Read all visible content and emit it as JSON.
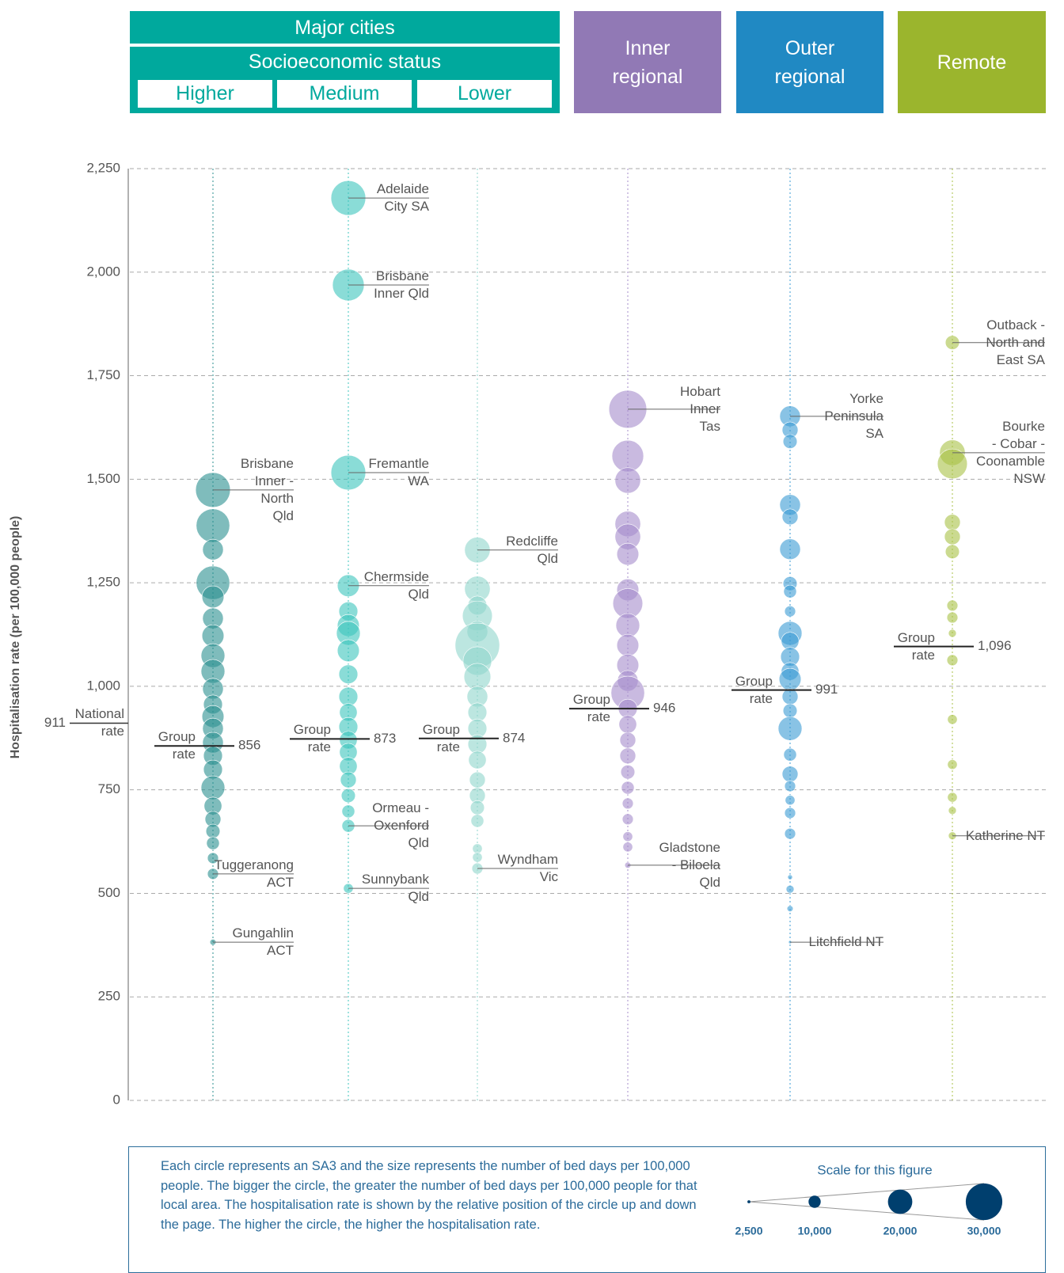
{
  "chart_data": {
    "type": "bubble",
    "header": {
      "group": "Major cities",
      "subgroup": "Socioeconomic status"
    },
    "ylabel": "Hospitalisation rate (per 100,000 people)",
    "ylim": [
      0,
      2250
    ],
    "yticks": [
      0,
      250,
      500,
      750,
      {
        "value": 1000,
        "label": "1,000"
      },
      {
        "value": 1250,
        "label": "1,250"
      },
      {
        "value": 1500,
        "label": "1,500"
      },
      {
        "value": 1750,
        "label": "1,750"
      },
      {
        "value": 2000,
        "label": "2,000"
      },
      {
        "value": 2250,
        "label": "2,250"
      }
    ],
    "grid": true,
    "group_rate_text": "Group\nrate",
    "national_rate": 911,
    "national_rate_text": "National\nrate",
    "series": [
      {
        "name": "Higher",
        "color": "#2a8f8f",
        "group_rate": 856,
        "values": [
          1474,
          1388,
          1330,
          1250,
          1216,
          1164,
          1122,
          1074,
          1036,
          994,
          956,
          927,
          898,
          864,
          832,
          799,
          755,
          711,
          679,
          650,
          621,
          585,
          547,
          382
        ],
        "sizes": [
          28500,
          27500,
          17000,
          27500,
          18000,
          17000,
          18000,
          19500,
          19500,
          17000,
          15500,
          18000,
          17000,
          17000,
          15500,
          15500,
          19500,
          14500,
          13000,
          11500,
          10500,
          9000,
          9000,
          5000
        ],
        "labels": [
          "Brisbane\nInner -\nNorth\nQld",
          null,
          null,
          null,
          null,
          null,
          null,
          null,
          null,
          null,
          null,
          null,
          null,
          null,
          null,
          null,
          null,
          null,
          null,
          null,
          null,
          null,
          "Tuggeranong\nACT",
          "Gungahlin\nACT"
        ]
      },
      {
        "name": "Medium",
        "color": "#3cc4bd",
        "group_rate": 873,
        "values": [
          2179,
          1969,
          1516,
          1243,
          1181,
          1147,
          1128,
          1086,
          1029,
          975,
          937,
          902,
          870,
          841,
          807,
          774,
          736,
          698,
          663,
          512
        ],
        "sizes": [
          28500,
          26000,
          28500,
          18000,
          15500,
          18000,
          19500,
          18000,
          15500,
          15500,
          14500,
          15500,
          14500,
          14500,
          14500,
          13000,
          11500,
          10500,
          10500,
          8000
        ],
        "labels": [
          "Adelaide\nCity SA",
          "Brisbane\nInner Qld",
          "Fremantle\nWA",
          "Chermside\nQld",
          null,
          null,
          null,
          null,
          null,
          null,
          null,
          null,
          null,
          null,
          null,
          null,
          null,
          null,
          "Ormeau -\nOxenford\nQld",
          "Sunnybank\nQld"
        ]
      },
      {
        "name": "Lower",
        "color": "#8fd6cc",
        "group_rate": 874,
        "values": [
          1329,
          1235,
          1195,
          1170,
          1132,
          1099,
          1061,
          1023,
          975,
          937,
          898,
          860,
          822,
          774,
          736,
          707,
          675,
          608,
          587,
          560
        ],
        "sizes": [
          21000,
          21000,
          15500,
          24500,
          17000,
          36500,
          23500,
          22000,
          17000,
          15500,
          15500,
          15500,
          14500,
          13000,
          13000,
          11500,
          10500,
          8000,
          8000,
          9000
        ],
        "labels": [
          "Redcliffe\nQld",
          null,
          null,
          null,
          null,
          null,
          null,
          null,
          null,
          null,
          null,
          null,
          null,
          null,
          null,
          null,
          null,
          null,
          null,
          "Wyndham\nVic"
        ]
      },
      {
        "name": "Inner regional",
        "color": "#a58ccb",
        "group_rate": 946,
        "values": [
          1669,
          1556,
          1497,
          1392,
          1361,
          1319,
          1233,
          1200,
          1147,
          1099,
          1051,
          1013,
          984,
          946,
          908,
          870,
          832,
          793,
          755,
          717,
          679,
          637,
          612,
          568
        ],
        "sizes": [
          31000,
          26000,
          21000,
          21000,
          21000,
          18000,
          18000,
          24500,
          19500,
          18000,
          18000,
          17000,
          27500,
          15500,
          14500,
          13000,
          13000,
          11500,
          10500,
          9000,
          9000,
          8000,
          8000,
          5000
        ],
        "labels": [
          "Hobart\nInner\nTas",
          null,
          null,
          null,
          null,
          null,
          null,
          null,
          null,
          null,
          null,
          null,
          null,
          null,
          null,
          null,
          null,
          null,
          null,
          null,
          null,
          null,
          null,
          "Gladstone\n- Biloela\nQld"
        ]
      },
      {
        "name": "Outer regional",
        "color": "#3a9bd4",
        "group_rate": 991,
        "values": [
          1652,
          1619,
          1591,
          1438,
          1409,
          1331,
          1248,
          1229,
          1181,
          1128,
          1109,
          1071,
          1036,
          1017,
          975,
          941,
          898,
          835,
          788,
          759,
          725,
          694,
          644,
          539,
          510,
          463,
          382
        ],
        "sizes": [
          17000,
          13000,
          11500,
          17000,
          13000,
          17000,
          11500,
          10500,
          9000,
          19500,
          14500,
          15500,
          14500,
          18000,
          13000,
          11500,
          19500,
          10500,
          13000,
          9000,
          8000,
          9000,
          9000,
          4000,
          6500,
          5000,
          2500
        ],
        "labels": [
          "Yorke\nPeninsula\nSA",
          null,
          null,
          null,
          null,
          null,
          null,
          null,
          null,
          null,
          null,
          null,
          null,
          null,
          null,
          null,
          null,
          null,
          null,
          null,
          null,
          null,
          null,
          null,
          null,
          null,
          "Litchfield NT"
        ]
      },
      {
        "name": "Remote",
        "color": "#a8c246",
        "group_rate": {
          "value": 1096,
          "label": "1,096"
        },
        "values": [
          1830,
          1564,
          1537,
          1396,
          1361,
          1325,
          1195,
          1166,
          1128,
          1063,
          920,
          811,
          732,
          700,
          639
        ],
        "sizes": [
          11500,
          21000,
          24500,
          13000,
          13000,
          11500,
          9000,
          9000,
          6500,
          9000,
          8000,
          8000,
          8000,
          6500,
          6500
        ],
        "labels": [
          "Outback -\nNorth and\nEast SA",
          "Bourke\n- Cobar -\nCoonamble\nNSW",
          null,
          null,
          null,
          null,
          null,
          null,
          null,
          null,
          null,
          null,
          null,
          null,
          "Katherine NT"
        ]
      }
    ],
    "note": "Each circle represents an SA3 and the size represents the number of bed days per 100,000 people. The bigger the circle, the greater the number of bed days per 100,000 people for that local area. The hospitalisation rate is shown by the relative position of the circle up and down the page. The higher the circle, the higher the hospitalisation rate.",
    "size_legend": {
      "title": "Scale for this figure",
      "color": "#003f6e",
      "values": [
        {
          "value": 2500,
          "label": "2,500"
        },
        {
          "value": 10000,
          "label": "10,000"
        },
        {
          "value": 20000,
          "label": "20,000"
        },
        {
          "value": 30000,
          "label": "30,000"
        }
      ]
    }
  }
}
